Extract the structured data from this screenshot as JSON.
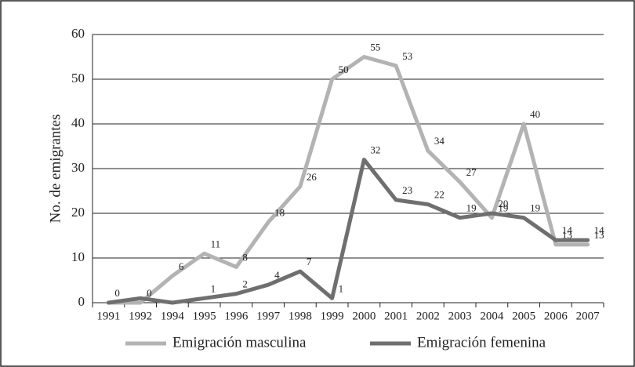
{
  "chart_data": {
    "type": "line",
    "ylabel": "No. de emigrantes",
    "categories": [
      "1991",
      "1992",
      "1994",
      "1995",
      "1996",
      "1997",
      "1998",
      "1999",
      "2000",
      "2001",
      "2002",
      "2003",
      "2004",
      "2005",
      "2006",
      "2007"
    ],
    "series": [
      {
        "name": "Emigración masculina",
        "color": "#b3b3b3",
        "values": [
          0,
          0,
          6,
          11,
          8,
          18,
          26,
          50,
          55,
          53,
          34,
          27,
          19,
          40,
          13,
          13
        ]
      },
      {
        "name": "Emigración femenina",
        "color": "#6f6f6f",
        "values": [
          0,
          1,
          0,
          1,
          2,
          4,
          7,
          1,
          32,
          23,
          22,
          19,
          20,
          19,
          14,
          14
        ],
        "value_labels": [
          null,
          null,
          null,
          "1",
          "2",
          "4",
          "7",
          "1",
          "32",
          "23",
          "22",
          "19",
          "20",
          "19",
          "14",
          "14"
        ]
      }
    ],
    "ylim": [
      0,
      60
    ],
    "yticks": [
      0,
      10,
      20,
      30,
      40,
      50,
      60
    ],
    "grid": true,
    "legend": "bottom"
  }
}
